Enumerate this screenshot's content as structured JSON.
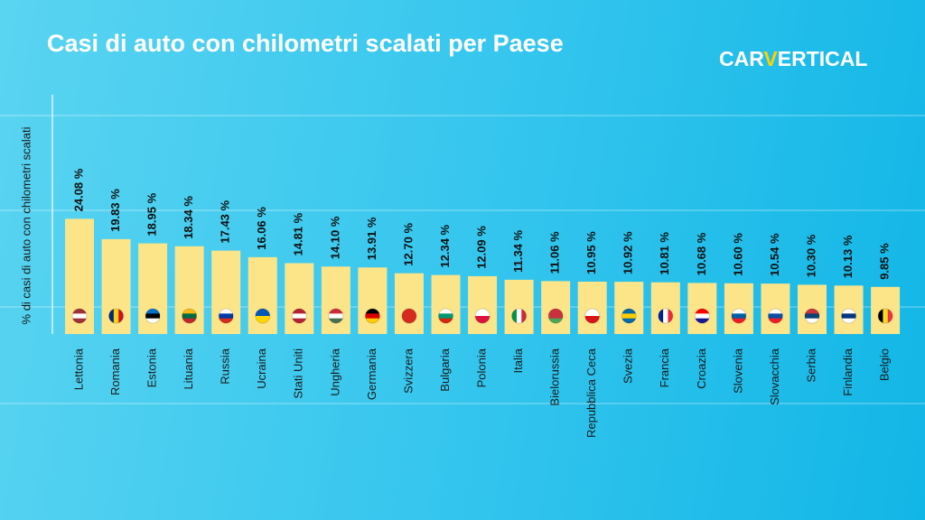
{
  "chart_data": {
    "type": "bar",
    "title": "Casi di auto con chilometri scalati per Paese",
    "logo": [
      "CAR",
      "V",
      "ERTICAL"
    ],
    "y_label": "% di casi di auto con chilometri scalati",
    "categories": [
      "Lettonia",
      "Romania",
      "Estonia",
      "Lituania",
      "Russia",
      "Ucraina",
      "Stati Uniti",
      "Ungheria",
      "Germania",
      "Svizzera",
      "Bulgaria",
      "Polonia",
      "Italia",
      "Bielorussia",
      "Repubblica Ceca",
      "Svezia",
      "Francia",
      "Croazia",
      "Slovenia",
      "Slovacchia",
      "Serbia",
      "Finlandia",
      "Belgio"
    ],
    "values": [
      24.08,
      19.83,
      18.95,
      18.34,
      17.43,
      16.06,
      14.81,
      14.1,
      13.91,
      12.7,
      12.34,
      12.09,
      11.34,
      11.06,
      10.95,
      10.92,
      10.81,
      10.68,
      10.6,
      10.54,
      10.3,
      10.13,
      9.85
    ],
    "value_labels": [
      "24.08 %",
      "19.83 %",
      "18.95 %",
      "18.34 %",
      "17.43 %",
      "16.06 %",
      "14.81 %",
      "14.10 %",
      "13.91 %",
      "12.70 %",
      "12.34 %",
      "12.09 %",
      "11.34 %",
      "11.06 %",
      "10.95 %",
      "10.92 %",
      "10.81 %",
      "10.68 %",
      "10.60 %",
      "10.54 %",
      "10.30 %",
      "10.13 %",
      "9.85 %"
    ],
    "color": "#fce489",
    "ylim": [
      0,
      50
    ]
  }
}
